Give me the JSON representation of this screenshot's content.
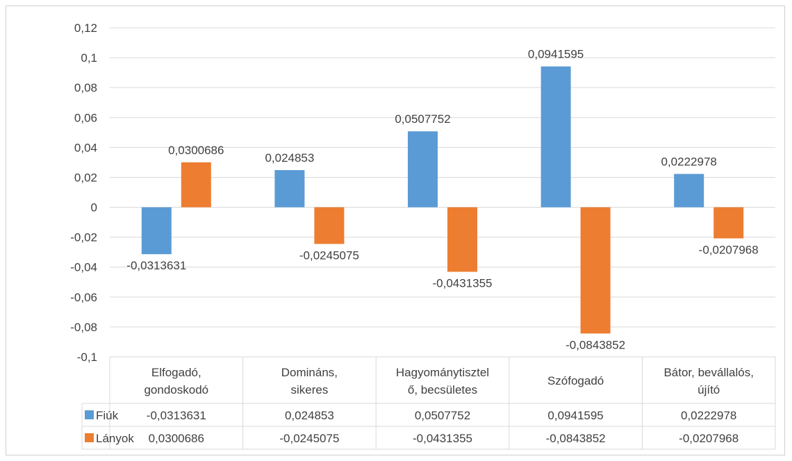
{
  "chart_data": {
    "type": "bar",
    "categories": [
      [
        "Elfogadó,",
        "gondoskodó"
      ],
      [
        "Domináns,",
        "sikeres"
      ],
      [
        "Hagyománytisztel",
        "ő, becsületes"
      ],
      [
        "Szófogadó"
      ],
      [
        "Bátor, bevállalós,",
        "újító"
      ]
    ],
    "series": [
      {
        "name": "Fiúk",
        "color": "#5B9BD5",
        "values": [
          -0.0313631,
          0.024853,
          0.0507752,
          0.0941595,
          0.0222978
        ],
        "labels": [
          "-0,0313631",
          "0,024853",
          "0,0507752",
          "0,0941595",
          "0,0222978"
        ]
      },
      {
        "name": "Lányok",
        "color": "#ED7D31",
        "values": [
          0.0300686,
          -0.0245075,
          -0.0431355,
          -0.0843852,
          -0.0207968
        ],
        "labels": [
          "0,0300686",
          "-0,0245075",
          "-0,0431355",
          "-0,0843852",
          "-0,0207968"
        ]
      }
    ],
    "yticks": [
      "0,12",
      "0,1",
      "0,08",
      "0,06",
      "0,04",
      "0,02",
      "0",
      "-0,02",
      "-0,04",
      "-0,06",
      "-0,08",
      "-0,1"
    ],
    "ylim": [
      -0.1,
      0.12
    ],
    "grid": true,
    "legend": "data-table"
  }
}
